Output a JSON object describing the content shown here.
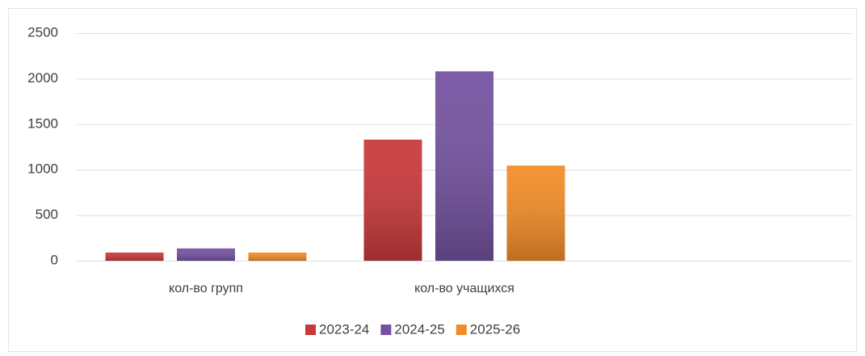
{
  "chart_data": {
    "type": "bar",
    "categories": [
      "кол-во групп",
      "кол-во учащихся",
      null
    ],
    "series": [
      {
        "name": "2023-24",
        "color": "#c9393a",
        "values": [
          90,
          1330,
          null
        ]
      },
      {
        "name": "2024-25",
        "color": "#7452a0",
        "values": [
          135,
          2080,
          null
        ]
      },
      {
        "name": "2025-26",
        "color": "#f28c28",
        "values": [
          90,
          1045,
          null
        ]
      }
    ],
    "ylim": [
      0,
      2500
    ],
    "yticks": [
      0,
      500,
      1000,
      1500,
      2000,
      2500
    ],
    "grid": true,
    "legend": "bottom"
  }
}
